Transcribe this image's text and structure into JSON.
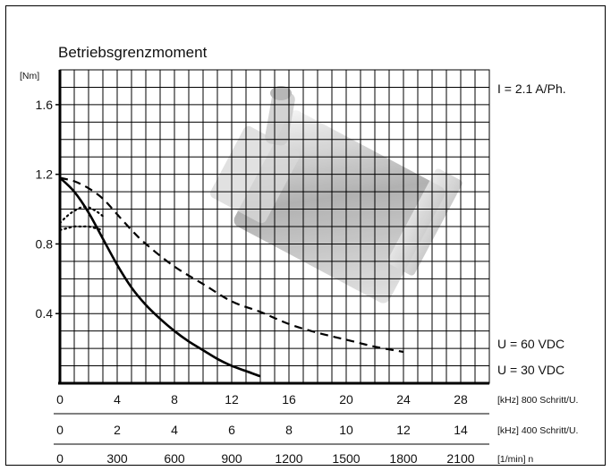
{
  "chart_data": {
    "type": "line",
    "title": "Betriebsgrenzmoment",
    "y_unit": "[Nm]",
    "ylim": [
      0,
      1.8
    ],
    "y_ticks": [
      "0.4",
      "0.8",
      "1.2",
      "1.6"
    ],
    "y_tick_values": [
      0.4,
      0.8,
      1.2,
      1.6
    ],
    "x_axes": [
      {
        "label": "[kHz] 800 Schritt/U.",
        "ticks": [
          "0",
          "4",
          "8",
          "12",
          "16",
          "20",
          "24",
          "28"
        ]
      },
      {
        "label": "[kHz] 400 Schritt/U.",
        "ticks": [
          "0",
          "2",
          "4",
          "6",
          "8",
          "10",
          "12",
          "14"
        ]
      },
      {
        "label": "[1/min] n",
        "ticks": [
          "0",
          "300",
          "600",
          "900",
          "1200",
          "1500",
          "1800",
          "2100"
        ]
      }
    ],
    "xlim": [
      0,
      30
    ],
    "grid": true,
    "annotation_current": "I = 2.1 A/Ph.",
    "series": [
      {
        "name": "U = 60 VDC",
        "style": "dashed",
        "x": [
          0,
          1,
          2,
          3,
          4,
          5,
          6,
          8,
          10,
          12,
          14,
          16,
          18,
          20,
          22,
          24
        ],
        "y": [
          1.18,
          1.16,
          1.12,
          1.06,
          0.97,
          0.88,
          0.8,
          0.67,
          0.57,
          0.47,
          0.41,
          0.34,
          0.29,
          0.25,
          0.21,
          0.18
        ]
      },
      {
        "name": "U = 30 VDC",
        "style": "solid",
        "x": [
          0,
          1,
          2,
          3,
          4,
          5,
          6,
          7,
          8,
          9,
          10,
          11,
          12,
          13,
          14
        ],
        "y": [
          1.18,
          1.1,
          0.98,
          0.83,
          0.68,
          0.55,
          0.45,
          0.37,
          0.3,
          0.24,
          0.19,
          0.14,
          0.1,
          0.07,
          0.04
        ]
      },
      {
        "name": "",
        "style": "dotted",
        "x": [
          0,
          0.5,
          1,
          1.5,
          2,
          2.5,
          3
        ],
        "y": [
          0.92,
          0.96,
          0.99,
          1.01,
          1.01,
          0.99,
          0.96
        ]
      },
      {
        "name": "",
        "style": "dotted",
        "x": [
          0,
          0.5,
          1,
          1.5,
          2,
          2.5,
          3
        ],
        "y": [
          0.88,
          0.89,
          0.9,
          0.9,
          0.9,
          0.89,
          0.88
        ]
      }
    ],
    "colors": {
      "axis": "#000000",
      "grid": "#000000",
      "curve": "#000000"
    }
  }
}
